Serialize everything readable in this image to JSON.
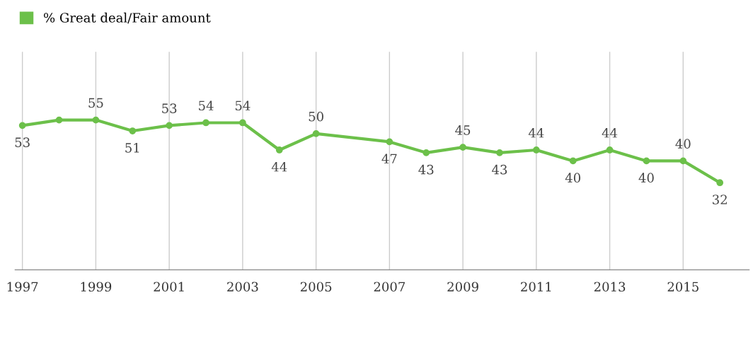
{
  "chart_data": {
    "type": "line",
    "x": [
      1997,
      1998,
      1999,
      2000,
      2001,
      2002,
      2003,
      2004,
      2005,
      2007,
      2008,
      2009,
      2010,
      2011,
      2012,
      2013,
      2014,
      2015,
      2016
    ],
    "series": [
      {
        "name": "% Great deal/Fair amount",
        "color": "#6cc04a",
        "values": [
          53,
          55,
          55,
          51,
          53,
          54,
          54,
          44,
          50,
          47,
          43,
          45,
          43,
          44,
          40,
          44,
          40,
          40,
          32
        ],
        "value_labels": [
          "53",
          null,
          "55",
          "51",
          "53",
          "54",
          "54",
          "44",
          "50",
          "47",
          "43",
          "45",
          "43",
          "44",
          "40",
          "44",
          "40",
          "40",
          "32"
        ]
      }
    ],
    "xlim": [
      1996.8,
      2016.8
    ],
    "xticks": [
      1997,
      1999,
      2001,
      2003,
      2005,
      2007,
      2009,
      2011,
      2013,
      2015
    ],
    "ylim": [
      0,
      80
    ],
    "tick_labels": "x",
    "grid": "x",
    "legend": "top left",
    "marker": "circle"
  }
}
